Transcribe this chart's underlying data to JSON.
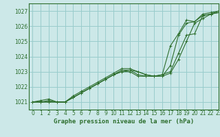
{
  "title": "Graphe pression niveau de la mer (hPa)",
  "bg_color": "#cce8e8",
  "grid_color": "#99cccc",
  "line_color": "#2d6e2d",
  "xlim": [
    -0.5,
    23
  ],
  "ylim": [
    1020.5,
    1027.5
  ],
  "yticks": [
    1021,
    1022,
    1023,
    1024,
    1025,
    1026,
    1027
  ],
  "xticks": [
    0,
    1,
    2,
    3,
    4,
    5,
    6,
    7,
    8,
    9,
    10,
    11,
    12,
    13,
    14,
    15,
    16,
    17,
    18,
    19,
    20,
    21,
    22,
    23
  ],
  "series": [
    [
      1021.0,
      1021.1,
      1021.2,
      1021.0,
      1021.0,
      1021.3,
      1021.6,
      1021.9,
      1022.2,
      1022.5,
      1022.8,
      1023.1,
      1023.1,
      1023.0,
      1022.8,
      1022.7,
      1022.8,
      1023.0,
      1024.2,
      1025.4,
      1025.5,
      1026.7,
      1026.8,
      1026.9
    ],
    [
      1021.0,
      1021.0,
      1021.0,
      1021.0,
      1021.0,
      1021.3,
      1021.6,
      1021.9,
      1022.2,
      1022.5,
      1022.8,
      1023.0,
      1023.0,
      1022.7,
      1022.7,
      1022.7,
      1022.7,
      1022.9,
      1023.8,
      1025.0,
      1026.2,
      1026.5,
      1026.8,
      1027.0
    ],
    [
      1021.0,
      1021.0,
      1021.0,
      1021.0,
      1021.0,
      1021.3,
      1021.6,
      1021.9,
      1022.2,
      1022.5,
      1022.8,
      1023.0,
      1023.1,
      1022.8,
      1022.7,
      1022.7,
      1022.7,
      1023.4,
      1025.4,
      1026.2,
      1026.3,
      1026.7,
      1026.8,
      1026.9
    ],
    [
      1021.0,
      1021.0,
      1021.1,
      1021.0,
      1021.0,
      1021.4,
      1021.7,
      1022.0,
      1022.3,
      1022.6,
      1022.9,
      1023.2,
      1023.2,
      1023.0,
      1022.8,
      1022.7,
      1022.8,
      1024.7,
      1025.5,
      1026.4,
      1026.3,
      1026.8,
      1026.9,
      1027.0
    ]
  ],
  "title_fontsize": 6.5,
  "tick_fontsize": 5.5
}
